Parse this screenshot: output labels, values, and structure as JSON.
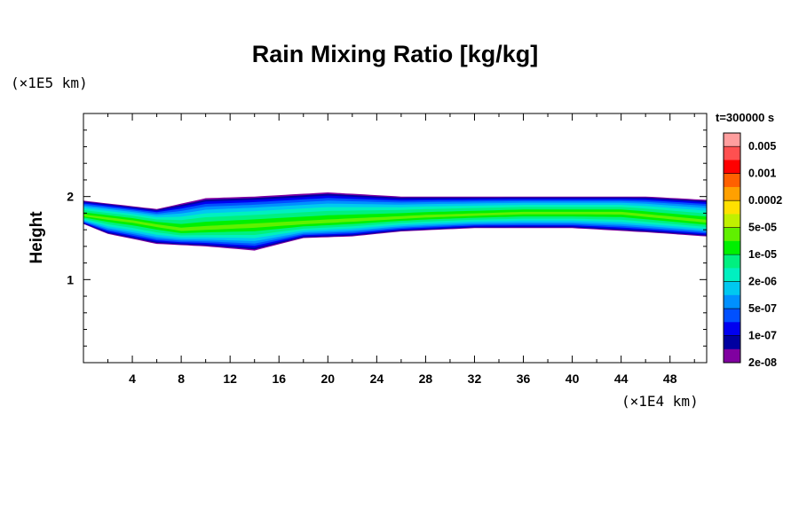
{
  "chart_data": {
    "type": "heatmap",
    "title": "Rain Mixing Ratio [kg/kg]",
    "xlabel": "",
    "ylabel": "Height",
    "x_unit_label": "(×1E4 km)",
    "y_unit_label": "(×1E5 km)",
    "time_label": "t=300000 s",
    "xlim": [
      0,
      51
    ],
    "ylim": [
      0,
      3
    ],
    "x_ticks": [
      4,
      8,
      12,
      16,
      20,
      24,
      28,
      32,
      36,
      40,
      44,
      48
    ],
    "y_ticks": [
      1,
      2
    ],
    "colorbar": {
      "labels": [
        "0.005",
        "0.001",
        "0.0002",
        "5e-05",
        "1e-05",
        "2e-06",
        "5e-07",
        "1e-07",
        "2e-08"
      ],
      "colors_top_to_bottom": [
        "#ff9e9e",
        "#ff5050",
        "#ff0000",
        "#ff6000",
        "#ffa000",
        "#ffe000",
        "#c0f000",
        "#60f000",
        "#00f000",
        "#00f080",
        "#00f0c0",
        "#00c8f0",
        "#0090ff",
        "#0050ff",
        "#0000f0",
        "#0000a0",
        "#8000a0"
      ]
    },
    "band_summary": {
      "lower_boundary_height": [
        [
          0,
          1.67
        ],
        [
          2,
          1.55
        ],
        [
          6,
          1.43
        ],
        [
          10,
          1.4
        ],
        [
          14,
          1.35
        ],
        [
          18,
          1.5
        ],
        [
          22,
          1.52
        ],
        [
          26,
          1.58
        ],
        [
          32,
          1.62
        ],
        [
          40,
          1.62
        ],
        [
          46,
          1.57
        ],
        [
          51,
          1.52
        ]
      ],
      "upper_boundary_height": [
        [
          0,
          1.95
        ],
        [
          6,
          1.85
        ],
        [
          10,
          1.98
        ],
        [
          14,
          2.0
        ],
        [
          20,
          2.05
        ],
        [
          26,
          2.0
        ],
        [
          32,
          2.0
        ],
        [
          40,
          2.0
        ],
        [
          46,
          2.0
        ],
        [
          51,
          1.96
        ]
      ],
      "core_height": [
        [
          0,
          1.77
        ],
        [
          4,
          1.7
        ],
        [
          8,
          1.6
        ],
        [
          28,
          1.76
        ],
        [
          36,
          1.8
        ],
        [
          44,
          1.8
        ],
        [
          51,
          1.7
        ]
      ]
    }
  }
}
